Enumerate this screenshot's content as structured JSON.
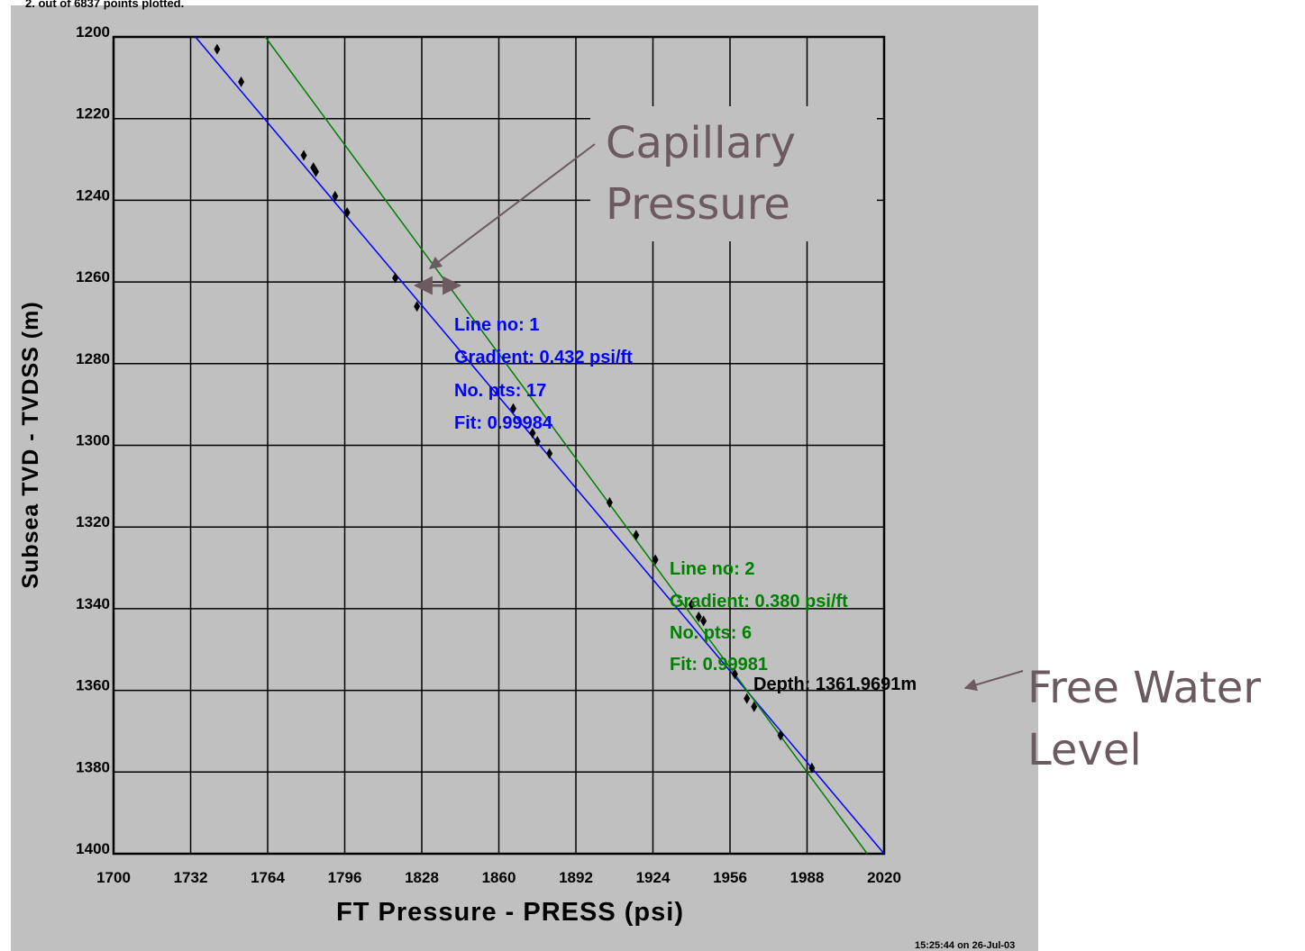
{
  "page": {
    "top_note": "2. out of 6837 points plotted.",
    "timestamp": "15:25:44 on 26-Jul-03"
  },
  "annotations": {
    "capillary_line1": "Capillary",
    "capillary_line2": "Pressure",
    "fwl_line1": "Free Water",
    "fwl_line2": "Level",
    "depth_label": "Depth: 1361.9691m"
  },
  "colors": {
    "line1": "#0000ff",
    "line2": "#008000",
    "points": "#000000",
    "grid": "#000000",
    "callout": "#6b5a5f",
    "background": "#c0c0c0"
  },
  "chart_data": {
    "type": "scatter",
    "title": "",
    "xlabel": "FT Pressure - PRESS (psi)",
    "ylabel": "Subsea TVD - TVDSS (m)",
    "xlim": [
      1700,
      2020
    ],
    "ylim": [
      1400,
      1200
    ],
    "y_inverted": true,
    "grid": true,
    "x_ticks": [
      "1700",
      "1732",
      "1764",
      "1796",
      "1828",
      "1860",
      "1892",
      "1924",
      "1956",
      "1988",
      "2020"
    ],
    "y_ticks": [
      "1200",
      "1220",
      "1240",
      "1260",
      "1280",
      "1300",
      "1320",
      "1340",
      "1360",
      "1380",
      "1400"
    ],
    "points": [
      {
        "x": 1743,
        "y": 1203
      },
      {
        "x": 1753,
        "y": 1211
      },
      {
        "x": 1779,
        "y": 1229
      },
      {
        "x": 1783,
        "y": 1232
      },
      {
        "x": 1784,
        "y": 1233
      },
      {
        "x": 1792,
        "y": 1239
      },
      {
        "x": 1797,
        "y": 1243
      },
      {
        "x": 1817,
        "y": 1259
      },
      {
        "x": 1826,
        "y": 1266
      },
      {
        "x": 1866,
        "y": 1291
      },
      {
        "x": 1874,
        "y": 1297
      },
      {
        "x": 1876,
        "y": 1299
      },
      {
        "x": 1881,
        "y": 1302
      },
      {
        "x": 1906,
        "y": 1314
      },
      {
        "x": 1917,
        "y": 1322
      },
      {
        "x": 1925,
        "y": 1328
      },
      {
        "x": 1940,
        "y": 1339
      },
      {
        "x": 1943,
        "y": 1342
      },
      {
        "x": 1945,
        "y": 1343
      },
      {
        "x": 1958,
        "y": 1356
      },
      {
        "x": 1963,
        "y": 1362
      },
      {
        "x": 1966,
        "y": 1364
      },
      {
        "x": 1977,
        "y": 1371
      },
      {
        "x": 1990,
        "y": 1379
      }
    ],
    "series": [
      {
        "name": "Line no: 1",
        "stats": [
          "Line no: 1",
          "Gradient: 0.432 psi/ft",
          "No. pts: 17",
          "Fit: 0.99984"
        ],
        "line": [
          [
            1734,
            1200
          ],
          [
            2020,
            1400
          ]
        ]
      },
      {
        "name": "Line no: 2",
        "stats": [
          "Line no: 2",
          "Gradient: 0.380 psi/ft",
          "No. pts: 6",
          "Fit: 0.99981"
        ],
        "line": [
          [
            1763,
            1200
          ],
          [
            2013,
            1400
          ]
        ]
      }
    ],
    "annotations": [
      "Depth: 1361.9691m"
    ]
  }
}
